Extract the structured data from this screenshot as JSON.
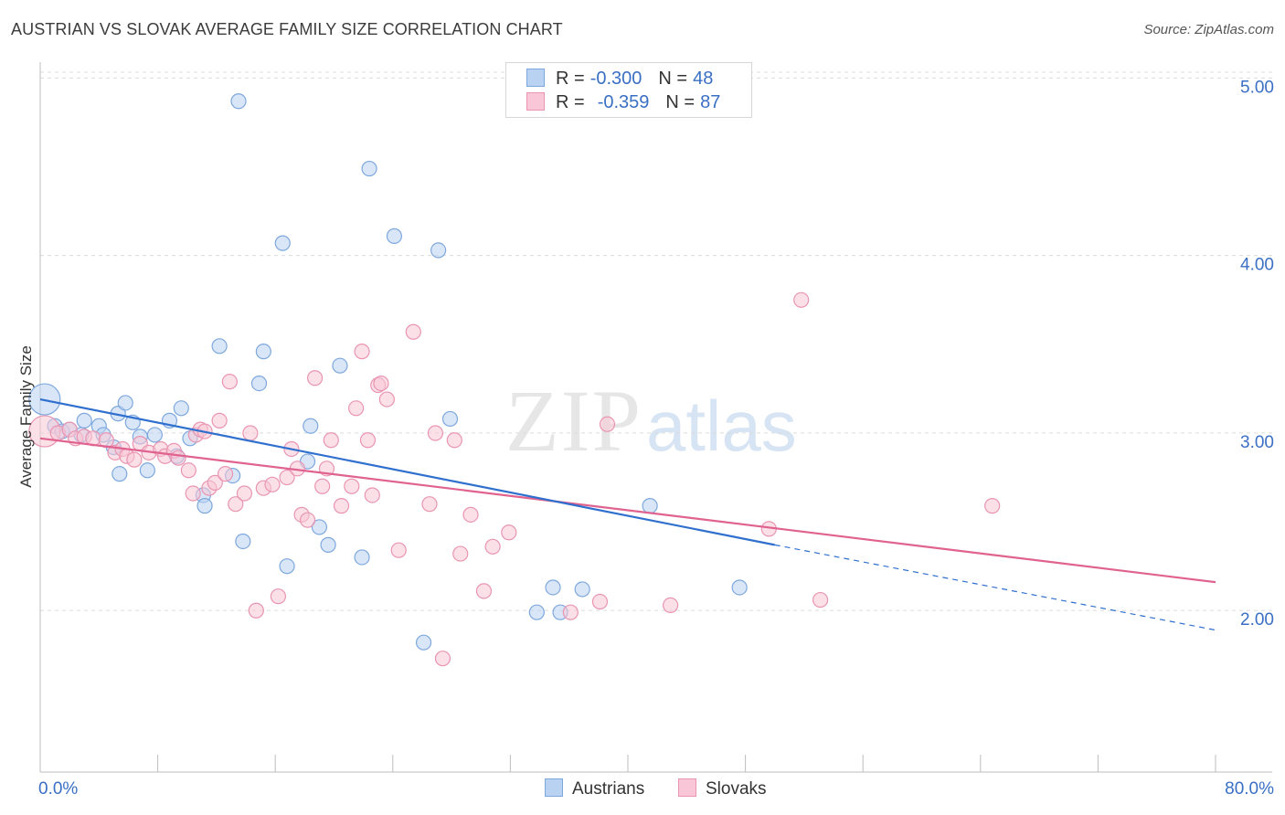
{
  "title": "AUSTRIAN VS SLOVAK AVERAGE FAMILY SIZE CORRELATION CHART",
  "source": "Source: ZipAtlas.com",
  "watermark": {
    "part1": "ZIP",
    "part2": "atlas"
  },
  "legend_top": [
    {
      "r_label": "R =",
      "r_value": "-0.300",
      "n_label": "N =",
      "n_value": "48"
    },
    {
      "r_label": "R =",
      "r_value": "-0.359",
      "n_label": "N =",
      "n_value": "87"
    }
  ],
  "legend_bottom": [
    "Austrians",
    "Slovaks"
  ],
  "colors": {
    "austrians_fill": "#b9d2f2",
    "austrians_stroke": "#7ea8dd",
    "austrians_line": "#2f6fce",
    "slovaks_fill": "#f8c6d6",
    "slovaks_stroke": "#e995b2",
    "slovaks_line": "#e0628f",
    "tick_label": "#3a6fc4",
    "grid": "#dcdcdc"
  },
  "chart_data": {
    "type": "scatter",
    "title": "AUSTRIAN VS SLOVAK AVERAGE FAMILY SIZE CORRELATION CHART",
    "xlabel": "",
    "ylabel": "Average Family Size",
    "xlim": [
      0,
      80
    ],
    "ylim": [
      1.1,
      5.1
    ],
    "x_tick_labels": [
      "0.0%",
      "80.0%"
    ],
    "y_ticks": [
      2.0,
      3.0,
      4.0,
      5.0
    ],
    "y_tick_labels": [
      "2.00",
      "3.00",
      "4.00",
      "5.00"
    ],
    "grid": "horizontal dashed",
    "legend_position": "top-center",
    "series": [
      {
        "name": "Austrians",
        "r": -0.3,
        "n": 48,
        "trend": {
          "x0": 0,
          "y0": 3.2,
          "x1": 50,
          "y1": 2.38,
          "dashed_to_x": 80,
          "dashed_to_y": 1.9
        },
        "points": [
          [
            0.3,
            3.2,
            "large"
          ],
          [
            1,
            3.05
          ],
          [
            1.5,
            3.02
          ],
          [
            2,
            3.03
          ],
          [
            2.8,
            3.0
          ],
          [
            3,
            3.08
          ],
          [
            4,
            3.05
          ],
          [
            4.3,
            3.0
          ],
          [
            5,
            2.93
          ],
          [
            5.4,
            2.78
          ],
          [
            5.3,
            3.12
          ],
          [
            5.8,
            3.18
          ],
          [
            6.3,
            3.07
          ],
          [
            6.8,
            2.99
          ],
          [
            7.3,
            2.8
          ],
          [
            7.8,
            3.0
          ],
          [
            8.8,
            3.08
          ],
          [
            9.3,
            2.88
          ],
          [
            9.6,
            3.15
          ],
          [
            10.2,
            2.98
          ],
          [
            11.1,
            2.66
          ],
          [
            11.2,
            2.6
          ],
          [
            12.2,
            3.5
          ],
          [
            13.1,
            2.77
          ],
          [
            13.5,
            4.88
          ],
          [
            13.8,
            2.4
          ],
          [
            14.9,
            3.29
          ],
          [
            15.2,
            3.47
          ],
          [
            16.5,
            4.08
          ],
          [
            16.8,
            2.26
          ],
          [
            18.2,
            2.85
          ],
          [
            18.4,
            3.05
          ],
          [
            19,
            2.48
          ],
          [
            19.6,
            2.38
          ],
          [
            20.4,
            3.39
          ],
          [
            21.9,
            2.31
          ],
          [
            22.4,
            4.5
          ],
          [
            24.1,
            4.12
          ],
          [
            26.1,
            1.83
          ],
          [
            27.1,
            4.04
          ],
          [
            27.9,
            3.09
          ],
          [
            33.8,
            2.0
          ],
          [
            34.9,
            2.14
          ],
          [
            35.4,
            2.0
          ],
          [
            36.9,
            2.13
          ],
          [
            41.5,
            2.6
          ],
          [
            47.6,
            2.14
          ]
        ]
      },
      {
        "name": "Slovaks",
        "r": -0.359,
        "n": 87,
        "trend": {
          "x0": 0,
          "y0": 2.98,
          "x1": 80,
          "y1": 2.17
        },
        "points": [
          [
            0.3,
            3.02,
            "large"
          ],
          [
            1.2,
            3.01
          ],
          [
            2,
            3.03
          ],
          [
            2.4,
            2.98
          ],
          [
            3,
            2.99
          ],
          [
            3.6,
            2.98
          ],
          [
            4.5,
            2.97
          ],
          [
            5.1,
            2.9
          ],
          [
            5.6,
            2.92
          ],
          [
            5.9,
            2.88
          ],
          [
            6.4,
            2.86
          ],
          [
            6.8,
            2.95
          ],
          [
            7.4,
            2.9
          ],
          [
            8.2,
            2.92
          ],
          [
            8.5,
            2.88
          ],
          [
            9.1,
            2.91
          ],
          [
            9.4,
            2.87
          ],
          [
            10.1,
            2.8
          ],
          [
            10.4,
            2.67
          ],
          [
            10.6,
            3.0
          ],
          [
            10.9,
            3.03
          ],
          [
            11.2,
            3.02
          ],
          [
            11.5,
            2.7
          ],
          [
            11.9,
            2.73
          ],
          [
            12.2,
            3.08
          ],
          [
            12.6,
            2.78
          ],
          [
            12.9,
            3.3
          ],
          [
            13.3,
            2.61
          ],
          [
            13.9,
            2.67
          ],
          [
            14.3,
            3.01
          ],
          [
            14.7,
            2.01
          ],
          [
            15.2,
            2.7
          ],
          [
            15.8,
            2.72
          ],
          [
            16.2,
            2.09
          ],
          [
            16.8,
            2.76
          ],
          [
            17.1,
            2.92
          ],
          [
            17.5,
            2.81
          ],
          [
            17.8,
            2.55
          ],
          [
            18.2,
            2.52
          ],
          [
            18.7,
            3.32
          ],
          [
            19.2,
            2.71
          ],
          [
            19.5,
            2.81
          ],
          [
            19.8,
            2.97
          ],
          [
            20.5,
            2.6
          ],
          [
            21.2,
            2.71
          ],
          [
            21.5,
            3.15
          ],
          [
            21.9,
            3.47
          ],
          [
            22.3,
            2.97
          ],
          [
            22.6,
            2.66
          ],
          [
            23,
            3.28
          ],
          [
            23.2,
            3.29
          ],
          [
            23.6,
            3.2
          ],
          [
            24.4,
            2.35
          ],
          [
            25.4,
            3.58
          ],
          [
            26.5,
            2.61
          ],
          [
            26.9,
            3.01
          ],
          [
            27.4,
            1.74
          ],
          [
            28.2,
            2.97
          ],
          [
            28.6,
            2.33
          ],
          [
            29.3,
            2.55
          ],
          [
            30.2,
            2.12
          ],
          [
            30.8,
            2.37
          ],
          [
            31.9,
            2.45
          ],
          [
            36.1,
            2.0
          ],
          [
            38.1,
            2.06
          ],
          [
            38.6,
            3.06
          ],
          [
            42.9,
            2.04
          ],
          [
            49.6,
            2.47
          ],
          [
            51.8,
            3.76
          ],
          [
            53.1,
            2.07
          ],
          [
            64.8,
            2.6
          ]
        ]
      }
    ]
  }
}
